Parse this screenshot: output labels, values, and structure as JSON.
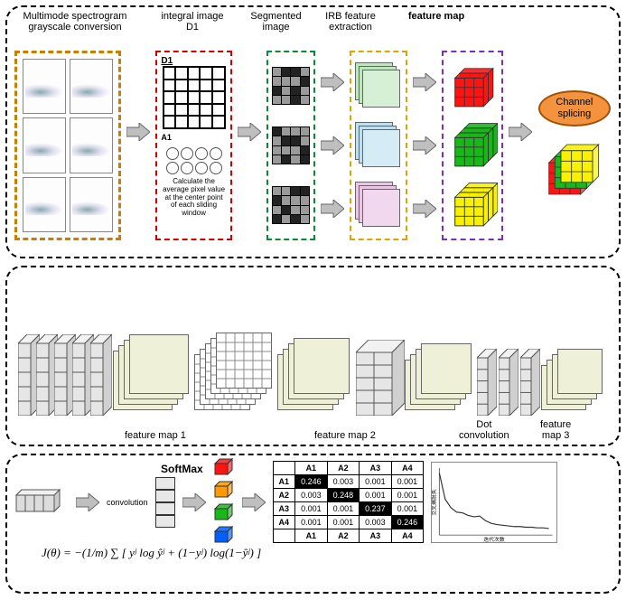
{
  "panel1": {
    "labels": {
      "grayscale": "Multimode spectrogram\ngrayscale conversion",
      "integral": "integral image\nD1",
      "d1": "D1",
      "a1": "A1",
      "integral_caption": "Calculate the average pixel value at the center point of each sliding window",
      "segmented": "Segmented\nimage",
      "irb": "IRB feature\nextraction",
      "featuremap": "feature map",
      "splice": "Channel splicing"
    },
    "colors": {
      "gray_border": "#c97e00",
      "integral_border": "#d00000",
      "seg_border": "#0a8b2f",
      "irb_border": "#e0a400",
      "fmap_border": "#7a2fbf",
      "cube_colors": [
        "#ff1414",
        "#17b817",
        "#f8f200"
      ],
      "irb_sheets": [
        [
          "#d5f0d5",
          "#c0e5c0"
        ],
        [
          "#d5ecf7",
          "#c0e0f0"
        ],
        [
          "#f2d8ef",
          "#e8c8e2"
        ]
      ],
      "splice_oval_fill": "#f5923e",
      "splice_oval_border": "#a05000",
      "splice_cube": [
        "#ff1414",
        "#17b817",
        "#f8f200"
      ]
    }
  },
  "panel2": {
    "labels": {
      "fm1": "feature map 1",
      "fm2": "feature map 2",
      "fm3": "feature\nmap 3",
      "dot": "Dot\nconvolution"
    },
    "colors": {
      "sheet": "#eef0d8",
      "grid": "#ffffff"
    }
  },
  "panel3": {
    "labels": {
      "conv": "convolution",
      "softmax": "SoftMax"
    },
    "confusion": {
      "headers": [
        "A1",
        "A2",
        "A3",
        "A4"
      ],
      "rows": [
        [
          "0.246",
          "0.003",
          "0.001",
          "0.001"
        ],
        [
          "0.003",
          "0.248",
          "0.001",
          "0.001"
        ],
        [
          "0.001",
          "0.001",
          "0.237",
          "0.001"
        ],
        [
          "0.001",
          "0.001",
          "0.003",
          "0.246"
        ]
      ]
    },
    "cube_colors": [
      "#ff1414",
      "#ff9a00",
      "#17b817",
      "#0060ff"
    ],
    "formula": "J(θ) = −(1/m) ∑ [ yʲ log ŷʲ + (1−yʲ) log(1−ŷʲ) ]",
    "chart": {
      "ylabel": "交叉熵损失",
      "xlabel": "迭代次数",
      "points": [
        0.95,
        0.55,
        0.42,
        0.35,
        0.34,
        0.3,
        0.28,
        0.29,
        0.22,
        0.18,
        0.16,
        0.15,
        0.14,
        0.13,
        0.13,
        0.12,
        0.12,
        0.11,
        0.11,
        0.1
      ],
      "line_color": "#333333"
    }
  }
}
